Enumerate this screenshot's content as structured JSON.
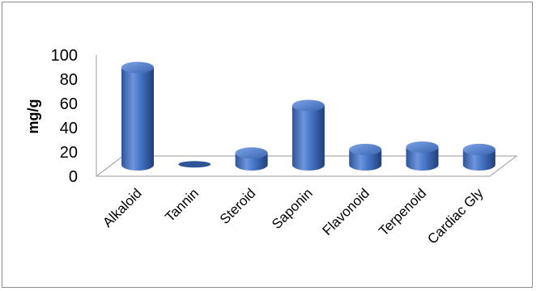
{
  "chart_data": {
    "type": "bar",
    "title": "",
    "xlabel": "",
    "ylabel": "mg/g",
    "ylim": [
      0,
      100
    ],
    "yticks": [
      0,
      20,
      40,
      60,
      80,
      100
    ],
    "categories": [
      "Alkaloid",
      "Tannin",
      "Steroid",
      "Saponin",
      "Flavonoid",
      "Terpenoid",
      "Cardiac Gly"
    ],
    "values": [
      82,
      0.5,
      10,
      50,
      13,
      15,
      13
    ],
    "grid": false,
    "legend": "none",
    "bar_color": "#4472c4"
  }
}
